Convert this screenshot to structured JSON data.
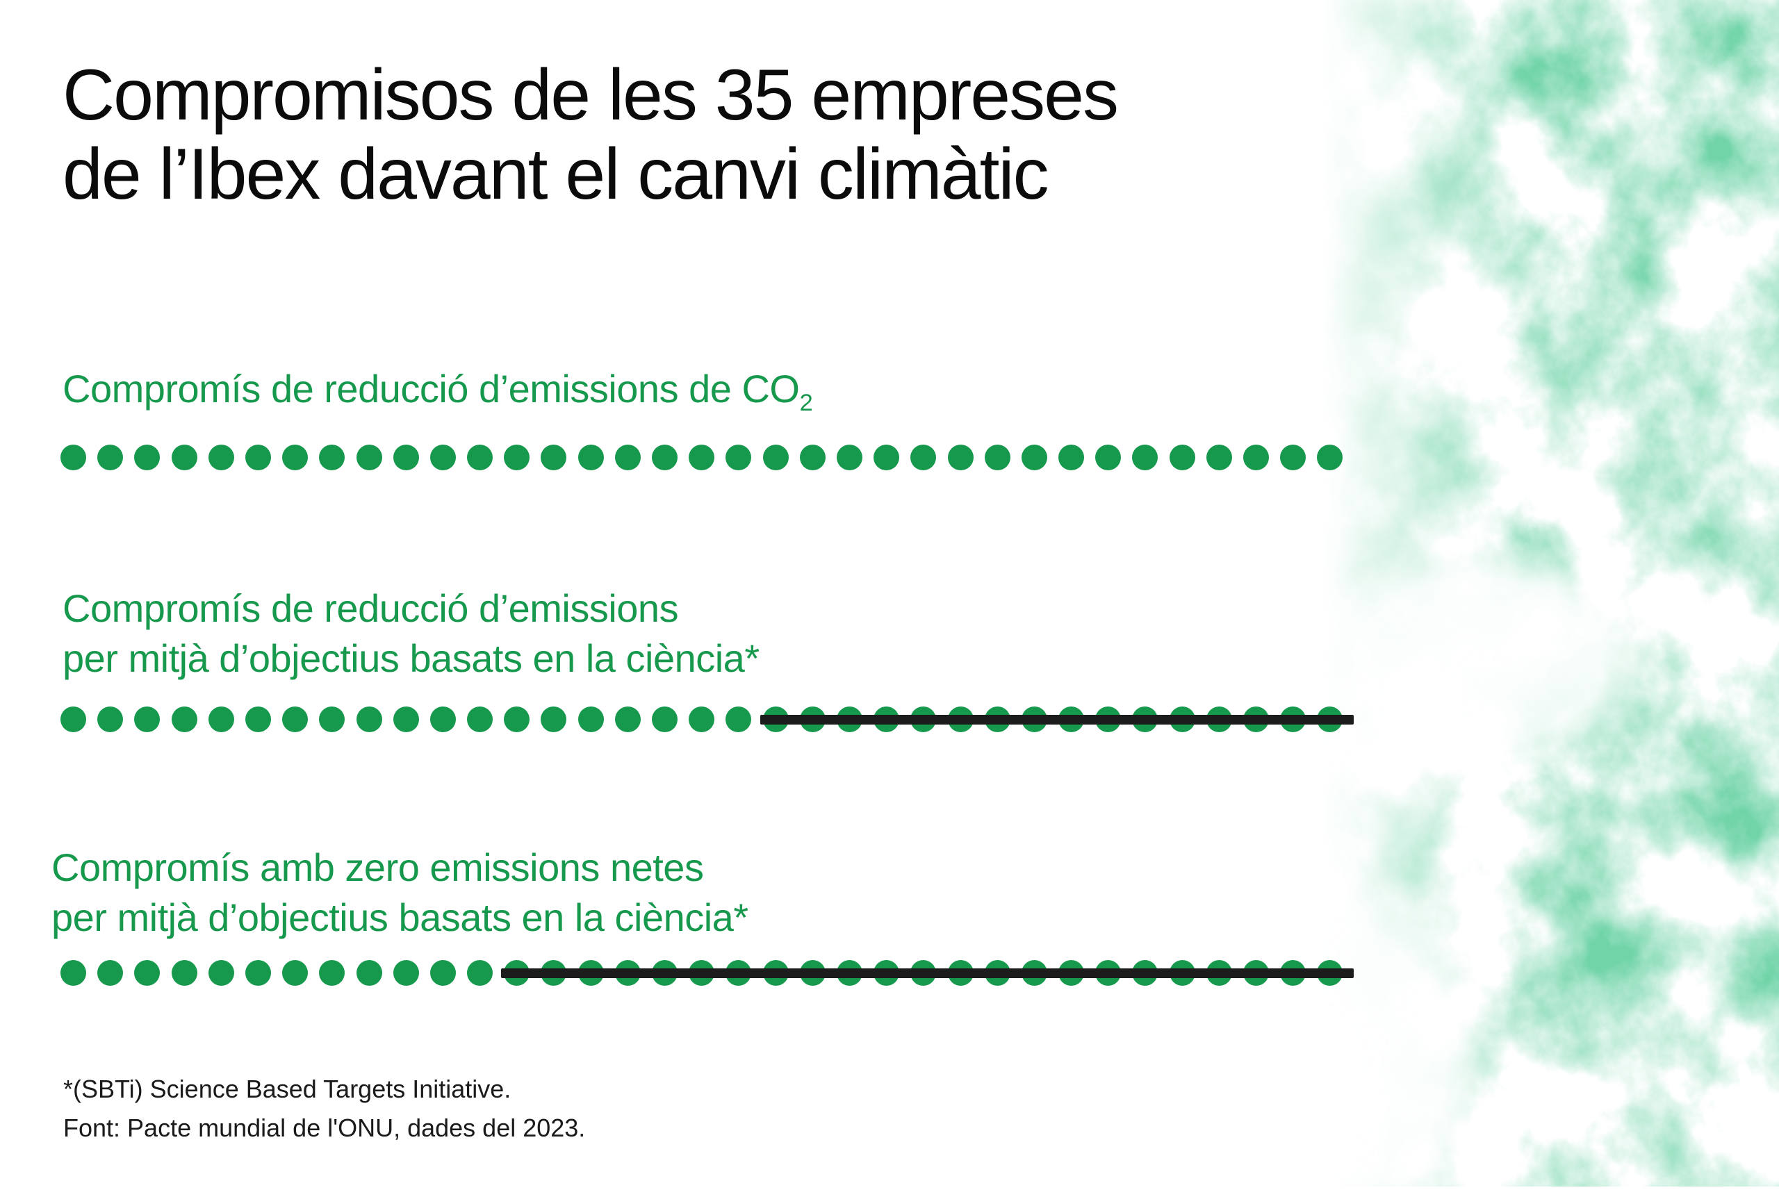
{
  "title": {
    "lines": [
      "Compromisos de les 35 empreses",
      "de l’Ibex davant el canvi climàtic"
    ],
    "text": "Compromisos de les 35 empreses de l’Ibex davant el canvi climàtic"
  },
  "colors": {
    "green": "#17994D",
    "strike_bar": "#1C1C1C",
    "title_text": "#0B0B0B",
    "footnote_text": "#1A1A1A",
    "background": "#FFFFFF",
    "cloud_green": "#29A764"
  },
  "chart_data": {
    "type": "pictogram",
    "equivalent_type": "bar",
    "description": "Unit chart: each green dot represents one of the 35 Ibex companies. A black strikethrough bar covers the dots of companies without that commitment.",
    "unit": "empresa de l'Ibex",
    "total_per_row": 35,
    "categories": [
      "Compromís de reducció d’emissions de CO₂",
      "Compromís de reducció d’emissions per mitjà d’objectius basats en la ciència*",
      "Compromís amb zero emissions netes per mitjà d’objectius basats en la ciència*"
    ],
    "values_committed": [
      35,
      19,
      12
    ],
    "values_struck_out": [
      0,
      16,
      23
    ],
    "rows": [
      {
        "label_full": "Compromís de reducció d’emissions de CO₂",
        "label_main": "Compromís de reducció d’emissions de CO",
        "label_sub": "2",
        "total": 35,
        "committed": 35,
        "struck": 0
      },
      {
        "label_full": "Compromís de reducció d’emissions per mitjà d’objectius basats en la ciència*",
        "label_line1": "Compromís de reducció d’emissions",
        "label_line2": "per mitjà d’objectius basats en la ciència*",
        "total": 35,
        "committed": 19,
        "struck": 16
      },
      {
        "label_full": "Compromís amb zero emissions netes per mitjà d’objectius basats en la ciència*",
        "label_line1": "Compromís amb zero emissions netes",
        "label_line2": "per mitjà d’objectius basats en la ciència*",
        "total": 35,
        "committed": 12,
        "struck": 23
      }
    ],
    "legend_position": "none",
    "grid": false
  },
  "footnote": {
    "lines": [
      "*(SBTi) Science Based Targets Initiative.",
      "Font: Pacte mundial de l'ONU, dades del 2023."
    ]
  }
}
